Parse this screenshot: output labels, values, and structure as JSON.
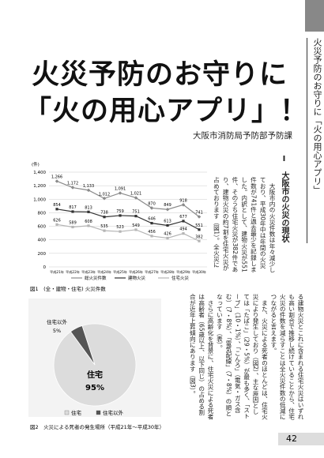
{
  "header": {
    "title_line1": "火災予防のお守りに",
    "title_line2": "「火の用心アプリ」！",
    "author": "大阪市消防局予防部予防課"
  },
  "sidebar": {
    "text": "火災予防のお守りに「火の用心アプリ」"
  },
  "body": {
    "heading": "Ⅰ　大阪市の火災の現状",
    "paragraphs": [
      "　大阪市内の火災件数は年々減少しており、平成30年中は年間の火災件数が741件と過去最少を記録しました。内訳として、建物火災が551件、そのうち住宅火災が382件であり、建物火災の約7割を住宅火災が占めております（図1）。全火災に占め",
      "る建物火災とこれに含まれる住宅火災はいずれも高い割合で推移し続けていることから、住宅火災の件数を減らすことは全火災件数の低減につながると言えます。",
      "　また、火災による死者のほとんどは、住宅火災により発生しており（図2）、主な原因としては「たばこ」（29・5%）が最も多く、「ストーブ」（10・1%）、「こんろ」（電気・ガス含む）（7・8%）、「電気配線」（7・8%）の順となっています（表）。",
      "　さらに高齢化を背景に、住宅火災による死者は高齢者（65歳以上、以下同じ）の占める割合が近年上昇傾向にあります（図3）。"
    ]
  },
  "page_number": "42",
  "chart_data": [
    {
      "type": "line",
      "caption": "図1　(全・建物・住宅) 火災件数",
      "y_label": "(件)",
      "categories": [
        "平成21年",
        "平成22年",
        "平成23年",
        "平成24年",
        "平成25年",
        "平成26年",
        "平成27年",
        "平成28年",
        "平成29年",
        "平成30年"
      ],
      "ylim": [
        0,
        1400
      ],
      "yticks": [
        0,
        200,
        400,
        600,
        800,
        {
          "value": 1000,
          "label": "1,000"
        },
        {
          "value": 1200,
          "label": "1,200"
        },
        {
          "value": 1400,
          "label": "1,400"
        }
      ],
      "grid": true,
      "series": [
        {
          "name": "総火災件数",
          "color": "#8a8a8a",
          "values": [
            1266,
            1172,
            1133,
            1012,
            1091,
            1021,
            870,
            849,
            918,
            741
          ],
          "value_labels": [
            "1,266",
            "1,172",
            "1,133",
            "1,012",
            "1,091",
            "1,021",
            "870",
            "849",
            "918",
            "741"
          ]
        },
        {
          "name": "建物火災",
          "color": "#333333",
          "values": [
            854,
            817,
            813,
            738,
            759,
            751,
            646,
            613,
            677,
            551
          ]
        },
        {
          "name": "住宅火災",
          "color": "#b5b5b5",
          "values": [
            626,
            589,
            608,
            535,
            523,
            549,
            456,
            426,
            494,
            382
          ]
        }
      ]
    },
    {
      "type": "pie",
      "caption": "図2　火災による死者の発生場所（平成21年～平成30年）",
      "categories": [
        "住宅",
        "住宅以外"
      ],
      "values": [
        95,
        5
      ],
      "value_labels": [
        "95%",
        "5%"
      ],
      "colors": [
        "#dcdcdc",
        "#555555"
      ]
    }
  ]
}
